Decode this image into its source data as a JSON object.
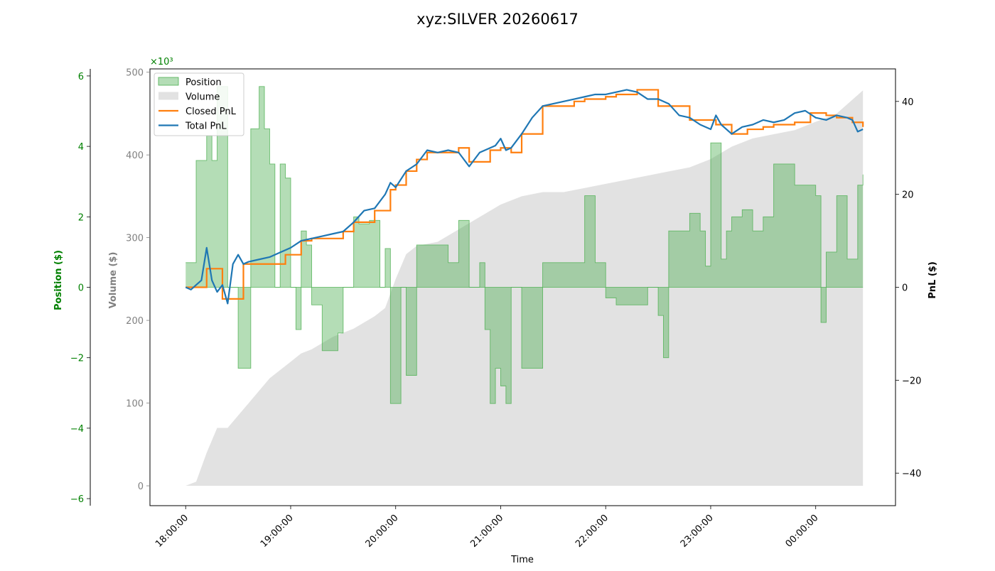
{
  "chart_data": {
    "type": "area",
    "title": "xyz:SILVER 20260617",
    "xlabel": "Time",
    "x_ticks": [
      "18:00:00",
      "19:00:00",
      "20:00:00",
      "21:00:00",
      "22:00:00",
      "23:00:00",
      "00:00:00"
    ],
    "x_range_hours": [
      17.66,
      24.76
    ],
    "axes": {
      "position": {
        "label": "Position ($)",
        "range": [
          -6.2,
          6.2
        ],
        "ticks": [
          "6",
          "4",
          "2",
          "0",
          "−2",
          "−4",
          "−6"
        ],
        "tick_values": [
          6,
          4,
          2,
          0,
          -2,
          -4,
          -6
        ],
        "offset_label": "×10³",
        "color": "#008000"
      },
      "volume": {
        "label": "Volume ($)",
        "range": [
          -24,
          504
        ],
        "ticks": [
          "500",
          "400",
          "300",
          "200",
          "100",
          "0"
        ],
        "tick_values": [
          500,
          400,
          300,
          200,
          100,
          0
        ],
        "color": "#808080"
      },
      "pnl": {
        "label": "PnL ($)",
        "range": [
          -47,
          47
        ],
        "ticks": [
          "40",
          "20",
          "0",
          "−20",
          "−40"
        ],
        "tick_values": [
          40,
          20,
          0,
          -20,
          -40
        ],
        "color": "#000000"
      }
    },
    "legend": {
      "placement": "upper-left",
      "entries": [
        {
          "label": "Position",
          "kind": "patch",
          "color": "#7fc97f"
        },
        {
          "label": "Volume",
          "kind": "patch",
          "color": "#d3d3d3"
        },
        {
          "label": "Closed PnL",
          "kind": "line",
          "color": "#ff7f0e"
        },
        {
          "label": "Total PnL",
          "kind": "line",
          "color": "#1f77b4"
        }
      ]
    },
    "series": [
      {
        "name": "Position",
        "axis": "position",
        "color": "#4caf50",
        "x": [
          18.0,
          18.05,
          18.1,
          18.15,
          18.2,
          18.25,
          18.3,
          18.35,
          18.4,
          18.5,
          18.58,
          18.62,
          18.7,
          18.75,
          18.8,
          18.85,
          18.9,
          18.95,
          19.0,
          19.05,
          19.1,
          19.15,
          19.2,
          19.3,
          19.35,
          19.45,
          19.5,
          19.6,
          19.65,
          19.75,
          19.85,
          19.9,
          19.95,
          20.0,
          20.05,
          20.1,
          20.2,
          20.3,
          20.4,
          20.5,
          20.6,
          20.65,
          20.7,
          20.8,
          20.85,
          20.9,
          20.95,
          21.0,
          21.05,
          21.1,
          21.2,
          21.3,
          21.4,
          21.5,
          21.6,
          21.7,
          21.8,
          21.9,
          22.0,
          22.1,
          22.2,
          22.3,
          22.4,
          22.5,
          22.55,
          22.6,
          22.7,
          22.8,
          22.9,
          22.95,
          23.0,
          23.05,
          23.1,
          23.15,
          23.2,
          23.3,
          23.4,
          23.5,
          23.6,
          23.7,
          23.8,
          23.9,
          24.0,
          24.05,
          24.1,
          24.2,
          24.3,
          24.4,
          24.45
        ],
        "values": [
          0.7,
          0.7,
          3.6,
          3.6,
          4.3,
          3.6,
          5.7,
          5.7,
          0.0,
          -2.3,
          -2.3,
          4.5,
          5.7,
          4.5,
          3.5,
          0.0,
          3.5,
          3.1,
          0.0,
          -1.2,
          1.6,
          1.2,
          -0.5,
          -1.8,
          -1.8,
          -1.3,
          0.0,
          2.0,
          1.8,
          1.9,
          0.0,
          1.1,
          -3.3,
          -3.3,
          0.0,
          -2.5,
          1.2,
          1.2,
          1.2,
          0.7,
          1.9,
          1.9,
          0.0,
          0.7,
          -1.2,
          -3.3,
          -2.3,
          -2.8,
          -3.3,
          0.0,
          -2.3,
          -2.3,
          0.7,
          0.7,
          0.7,
          0.7,
          2.6,
          0.7,
          -0.3,
          -0.5,
          -0.5,
          -0.5,
          0.0,
          -0.8,
          -2.0,
          1.6,
          1.6,
          2.1,
          1.6,
          0.6,
          4.1,
          4.1,
          0.8,
          1.6,
          2.0,
          2.2,
          1.6,
          2.0,
          3.5,
          3.5,
          2.9,
          2.9,
          2.6,
          -1.0,
          1.0,
          2.6,
          0.8,
          2.9,
          3.2
        ]
      },
      {
        "name": "Volume",
        "axis": "volume",
        "color": "#d3d3d3",
        "x": [
          18.0,
          18.1,
          18.2,
          18.3,
          18.4,
          18.5,
          18.6,
          18.7,
          18.8,
          18.9,
          19.0,
          19.1,
          19.2,
          19.4,
          19.6,
          19.8,
          19.9,
          20.0,
          20.1,
          20.2,
          20.4,
          20.6,
          20.8,
          21.0,
          21.2,
          21.4,
          21.6,
          21.8,
          22.0,
          22.2,
          22.4,
          22.6,
          22.8,
          23.0,
          23.2,
          23.4,
          23.6,
          23.8,
          24.0,
          24.2,
          24.45
        ],
        "values": [
          0,
          5,
          40,
          70,
          70,
          85,
          100,
          115,
          130,
          140,
          150,
          160,
          165,
          180,
          190,
          205,
          215,
          250,
          280,
          290,
          295,
          310,
          325,
          340,
          350,
          355,
          355,
          360,
          365,
          370,
          375,
          380,
          385,
          395,
          410,
          420,
          425,
          430,
          440,
          450,
          478
        ]
      },
      {
        "name": "Closed PnL",
        "axis": "pnl",
        "color": "#ff7f0e",
        "x": [
          18.0,
          18.15,
          18.2,
          18.3,
          18.35,
          18.5,
          18.55,
          18.8,
          18.95,
          19.1,
          19.2,
          19.5,
          19.6,
          19.8,
          19.95,
          20.0,
          20.1,
          20.2,
          20.3,
          20.5,
          20.6,
          20.7,
          20.9,
          21.0,
          21.1,
          21.2,
          21.3,
          21.4,
          21.5,
          21.6,
          21.7,
          21.8,
          22.0,
          22.1,
          22.3,
          22.5,
          22.8,
          22.95,
          23.05,
          23.2,
          23.35,
          23.5,
          23.6,
          23.8,
          23.95,
          24.1,
          24.2,
          24.35,
          24.45
        ],
        "values": [
          0.0,
          0.0,
          4.0,
          4.0,
          -2.5,
          -2.5,
          5.0,
          5.0,
          7.0,
          10.0,
          10.5,
          12.0,
          14.0,
          16.5,
          21.0,
          22.0,
          25.0,
          27.5,
          29.0,
          29.0,
          30.0,
          27.0,
          29.5,
          30.0,
          29.0,
          33.0,
          33.0,
          39.0,
          39.0,
          39.0,
          40.0,
          40.5,
          41.0,
          41.5,
          42.5,
          39.0,
          36.0,
          36.0,
          35.0,
          33.0,
          34.0,
          34.5,
          35.0,
          35.5,
          37.5,
          37.0,
          36.5,
          35.5,
          34.5
        ]
      },
      {
        "name": "Total PnL",
        "axis": "pnl",
        "color": "#1f77b4",
        "x": [
          18.0,
          18.05,
          18.1,
          18.15,
          18.2,
          18.25,
          18.3,
          18.35,
          18.4,
          18.45,
          18.5,
          18.55,
          18.6,
          18.7,
          18.8,
          18.9,
          19.0,
          19.1,
          19.2,
          19.3,
          19.4,
          19.5,
          19.6,
          19.7,
          19.8,
          19.9,
          19.95,
          20.0,
          20.1,
          20.2,
          20.3,
          20.4,
          20.5,
          20.6,
          20.7,
          20.8,
          20.9,
          20.95,
          21.0,
          21.05,
          21.1,
          21.2,
          21.3,
          21.4,
          21.5,
          21.6,
          21.7,
          21.8,
          21.9,
          22.0,
          22.1,
          22.2,
          22.3,
          22.4,
          22.5,
          22.6,
          22.7,
          22.8,
          22.9,
          23.0,
          23.05,
          23.1,
          23.2,
          23.3,
          23.4,
          23.5,
          23.6,
          23.7,
          23.8,
          23.9,
          24.0,
          24.1,
          24.2,
          24.3,
          24.35,
          24.4,
          24.45
        ],
        "values": [
          0.0,
          -0.5,
          0.5,
          1.5,
          8.5,
          1.5,
          -1.0,
          0.5,
          -3.5,
          5.0,
          7.0,
          5.0,
          5.5,
          6.0,
          6.5,
          7.5,
          8.5,
          10.0,
          10.5,
          11.0,
          11.5,
          12.0,
          14.0,
          16.5,
          17.0,
          20.0,
          22.5,
          21.5,
          25.0,
          26.5,
          29.5,
          29.0,
          29.5,
          29.0,
          26.0,
          29.0,
          30.0,
          30.5,
          32.0,
          29.5,
          30.0,
          33.0,
          36.5,
          39.0,
          39.5,
          40.0,
          40.5,
          41.0,
          41.5,
          41.5,
          42.0,
          42.5,
          42.0,
          40.5,
          40.5,
          39.5,
          37.0,
          36.5,
          35.0,
          34.0,
          37.0,
          35.0,
          33.0,
          34.5,
          35.0,
          36.0,
          35.5,
          36.0,
          37.5,
          38.0,
          36.5,
          36.0,
          37.0,
          36.5,
          36.0,
          33.5,
          34.0
        ]
      }
    ]
  }
}
